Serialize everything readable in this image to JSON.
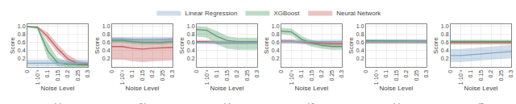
{
  "chart_data": [
    {
      "type": "line",
      "title": "(a)",
      "xlabel": "Noise Level",
      "ylabel": "Score",
      "categories": [
        "0",
        "1·10⁻³",
        "0.1",
        "0.15",
        "0.2",
        "0.25",
        "0.3"
      ],
      "ylim": [
        0,
        1.05
      ],
      "yticks": [
        0.2,
        0.4,
        0.6,
        0.8,
        {
          "value": 1.0,
          "label": "1.0"
        }
      ],
      "grid": true,
      "legend": "top",
      "series": [
        {
          "name": "Linear Regression",
          "color": "#7fa8c8",
          "values": [
            0.09,
            0.09,
            0.09,
            0.09,
            0.09,
            0.09,
            0.09
          ],
          "low": [
            0.02,
            0.02,
            0.02,
            0.02,
            0.02,
            0.02,
            0.02
          ],
          "high": [
            0.18,
            0.18,
            0.18,
            0.18,
            0.18,
            0.18,
            0.18
          ]
        },
        {
          "name": "XGBoost",
          "color": "#5a9e6e",
          "values": [
            0.99,
            0.97,
            0.4,
            0.1,
            0.06,
            0.05,
            0.05
          ],
          "low": [
            0.97,
            0.93,
            0.22,
            0.02,
            0.0,
            0.0,
            0.0
          ],
          "high": [
            1.0,
            0.995,
            0.6,
            0.22,
            0.14,
            0.12,
            0.12
          ]
        },
        {
          "name": "Neural Network",
          "color": "#c96060",
          "values": [
            0.99,
            0.98,
            0.75,
            0.45,
            0.2,
            0.08,
            0.06
          ],
          "low": [
            0.97,
            0.96,
            0.65,
            0.35,
            0.12,
            0.03,
            0.02
          ],
          "high": [
            1.0,
            0.995,
            0.85,
            0.56,
            0.3,
            0.16,
            0.12
          ]
        }
      ]
    },
    {
      "type": "line",
      "title": "(b)",
      "xlabel": "Noise Level",
      "ylabel": "Score",
      "categories": [
        "0",
        "1·10⁻³",
        "0.1",
        "0.15",
        "0.2",
        "0.25",
        "0.3"
      ],
      "ylim": [
        0,
        1.05
      ],
      "yticks": [
        0.2,
        0.4,
        0.6,
        0.8,
        {
          "value": 1.0,
          "label": "1.0"
        }
      ],
      "grid": true,
      "series": [
        {
          "color": "#7fa8c8",
          "values": [
            0.68,
            0.68,
            0.68,
            0.68,
            0.68,
            0.68,
            0.68
          ],
          "low": [
            0.62,
            0.62,
            0.62,
            0.62,
            0.62,
            0.62,
            0.62
          ],
          "high": [
            0.74,
            0.74,
            0.74,
            0.74,
            0.74,
            0.74,
            0.74
          ]
        },
        {
          "color": "#5a9e6e",
          "values": [
            0.65,
            0.65,
            0.62,
            0.6,
            0.6,
            0.6,
            0.62
          ],
          "low": [
            0.6,
            0.6,
            0.57,
            0.55,
            0.55,
            0.55,
            0.57
          ],
          "high": [
            0.7,
            0.7,
            0.67,
            0.65,
            0.65,
            0.65,
            0.67
          ]
        },
        {
          "color": "#c96060",
          "values": [
            0.5,
            0.5,
            0.46,
            0.44,
            0.46,
            0.47,
            0.48
          ],
          "low": [
            0.18,
            0.18,
            0.14,
            0.12,
            0.14,
            0.15,
            0.16
          ],
          "high": [
            0.72,
            0.72,
            0.7,
            0.68,
            0.7,
            0.7,
            0.72
          ]
        }
      ]
    },
    {
      "type": "line",
      "title": "(c)",
      "xlabel": "Noise Level",
      "ylabel": "Score",
      "categories": [
        "0",
        "1·10⁻³",
        "0.1",
        "0.15",
        "0.2",
        "0.25",
        "0.3"
      ],
      "ylim": [
        0,
        1.05
      ],
      "yticks": [
        0.2,
        0.4,
        0.6,
        0.8,
        {
          "value": 1.0,
          "label": "1.0"
        }
      ],
      "grid": true,
      "series": [
        {
          "color": "#7fa8c8",
          "values": [
            0.6,
            0.6,
            0.6,
            0.6,
            0.6,
            0.6,
            0.6
          ],
          "low": [
            0.56,
            0.56,
            0.56,
            0.56,
            0.56,
            0.56,
            0.56
          ],
          "high": [
            0.64,
            0.64,
            0.64,
            0.64,
            0.64,
            0.64,
            0.64
          ]
        },
        {
          "color": "#5a9e6e",
          "values": [
            0.92,
            0.9,
            0.75,
            0.65,
            0.62,
            0.62,
            0.62
          ],
          "low": [
            0.75,
            0.72,
            0.55,
            0.45,
            0.42,
            0.42,
            0.42
          ],
          "high": [
            1.0,
            0.98,
            0.88,
            0.76,
            0.72,
            0.72,
            0.72
          ]
        },
        {
          "color": "#c96060",
          "values": [
            0.62,
            0.62,
            0.6,
            0.6,
            0.6,
            0.6,
            0.6
          ],
          "low": [
            0.58,
            0.58,
            0.56,
            0.56,
            0.56,
            0.56,
            0.56
          ],
          "high": [
            0.66,
            0.66,
            0.64,
            0.64,
            0.64,
            0.64,
            0.64
          ]
        }
      ]
    },
    {
      "type": "line",
      "title": "(d)",
      "xlabel": "Noise Level",
      "ylabel": "Score",
      "categories": [
        "0",
        "1·10⁻³",
        "0.1",
        "0.15",
        "0.2",
        "0.25",
        "0.3"
      ],
      "ylim": [
        0,
        1.05
      ],
      "yticks": [
        0.2,
        0.4,
        0.6,
        0.8,
        {
          "value": 1.0,
          "label": "1.0"
        }
      ],
      "grid": true,
      "series": [
        {
          "color": "#7fa8c8",
          "values": [
            0.62,
            0.62,
            0.62,
            0.62,
            0.62,
            0.62,
            0.62
          ],
          "low": [
            0.57,
            0.57,
            0.57,
            0.57,
            0.57,
            0.57,
            0.57
          ],
          "high": [
            0.67,
            0.67,
            0.67,
            0.67,
            0.67,
            0.67,
            0.67
          ]
        },
        {
          "color": "#5a9e6e",
          "values": [
            0.88,
            0.86,
            0.68,
            0.58,
            0.53,
            0.5,
            0.5
          ],
          "low": [
            0.8,
            0.78,
            0.6,
            0.5,
            0.45,
            0.42,
            0.42
          ],
          "high": [
            0.96,
            0.94,
            0.76,
            0.66,
            0.61,
            0.58,
            0.58
          ]
        },
        {
          "color": "#c96060",
          "values": [
            0.63,
            0.63,
            0.61,
            0.59,
            0.58,
            0.57,
            0.57
          ],
          "low": [
            0.58,
            0.58,
            0.56,
            0.54,
            0.53,
            0.52,
            0.52
          ],
          "high": [
            0.68,
            0.68,
            0.66,
            0.64,
            0.63,
            0.62,
            0.62
          ]
        }
      ]
    },
    {
      "type": "line",
      "title": "(e)",
      "xlabel": "Noise Level",
      "ylabel": "Score",
      "categories": [
        "0",
        "1·10⁻³",
        "0.1",
        "0.15",
        "0.2",
        "0.25",
        "0.3"
      ],
      "ylim": [
        0,
        1.05
      ],
      "yticks": [
        0.2,
        0.4,
        0.6,
        0.8,
        {
          "value": 1.0,
          "label": "1.0"
        }
      ],
      "grid": true,
      "series": [
        {
          "color": "#7fa8c8",
          "values": [
            0.62,
            0.62,
            0.62,
            0.62,
            0.62,
            0.62,
            0.62
          ],
          "low": [
            0.57,
            0.57,
            0.57,
            0.57,
            0.57,
            0.57,
            0.57
          ],
          "high": [
            0.67,
            0.67,
            0.67,
            0.67,
            0.67,
            0.67,
            0.67
          ]
        },
        {
          "color": "#5a9e6e",
          "values": [
            0.64,
            0.64,
            0.63,
            0.63,
            0.63,
            0.63,
            0.63
          ],
          "low": [
            0.6,
            0.6,
            0.59,
            0.59,
            0.59,
            0.59,
            0.59
          ],
          "high": [
            0.68,
            0.68,
            0.67,
            0.67,
            0.67,
            0.67,
            0.67
          ]
        },
        {
          "color": "#c96060",
          "values": [
            0.62,
            0.62,
            0.62,
            0.62,
            0.62,
            0.62,
            0.62
          ],
          "low": [
            0.57,
            0.57,
            0.57,
            0.57,
            0.57,
            0.57,
            0.57
          ],
          "high": [
            0.67,
            0.67,
            0.67,
            0.67,
            0.67,
            0.67,
            0.67
          ]
        }
      ]
    },
    {
      "type": "line",
      "title": "(f)",
      "xlabel": "Noise Level",
      "ylabel": "Score",
      "categories": [
        "0",
        "1·10⁻³",
        "0.1",
        "0.15",
        "0.2",
        "0.25",
        "0.3"
      ],
      "ylim": [
        0,
        1.05
      ],
      "yticks": [
        0.2,
        0.4,
        0.6,
        0.8,
        {
          "value": 1.0,
          "label": "1.0"
        }
      ],
      "grid": true,
      "series": [
        {
          "color": "#7fa8c8",
          "values": [
            0.28,
            0.28,
            0.3,
            0.32,
            0.34,
            0.36,
            0.38
          ],
          "low": [
            0.12,
            0.12,
            0.14,
            0.16,
            0.18,
            0.2,
            0.22
          ],
          "high": [
            0.44,
            0.44,
            0.46,
            0.48,
            0.5,
            0.52,
            0.54
          ]
        },
        {
          "color": "#5a9e6e",
          "values": [
            0.62,
            0.62,
            0.62,
            0.62,
            0.62,
            0.62,
            0.62
          ],
          "low": [
            0.57,
            0.57,
            0.57,
            0.57,
            0.57,
            0.57,
            0.57
          ],
          "high": [
            0.67,
            0.67,
            0.67,
            0.67,
            0.67,
            0.67,
            0.67
          ]
        },
        {
          "color": "#c96060",
          "values": [
            0.6,
            0.6,
            0.6,
            0.6,
            0.6,
            0.6,
            0.6
          ],
          "low": [
            0.55,
            0.55,
            0.55,
            0.55,
            0.55,
            0.55,
            0.55
          ],
          "high": [
            0.65,
            0.65,
            0.65,
            0.65,
            0.65,
            0.65,
            0.65
          ]
        }
      ]
    }
  ]
}
